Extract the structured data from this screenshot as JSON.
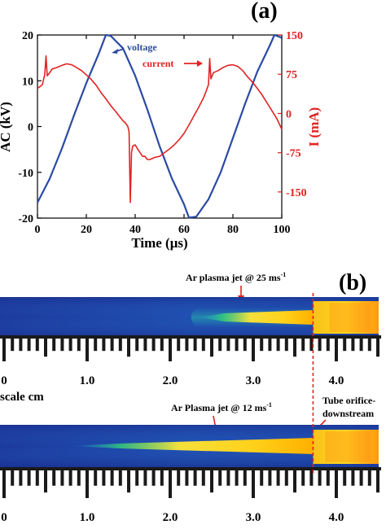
{
  "chart_data": [
    {
      "type": "line",
      "panel_label": "(a)",
      "xlabel": "Time (μs)",
      "ylabel": "AC (kV)",
      "y2label": "I (mA)",
      "xlim": [
        0,
        100
      ],
      "ylim": [
        -20,
        20
      ],
      "y2lim": [
        -200,
        150
      ],
      "xticks": [
        0,
        20,
        40,
        60,
        80,
        100
      ],
      "yticks": [
        -20,
        -10,
        0,
        10,
        20
      ],
      "y2ticks": [
        -150,
        -75,
        0,
        75,
        150
      ],
      "grid": false,
      "legend_placement": "top-right",
      "series": [
        {
          "name": "voltage",
          "axis": "left",
          "color": "#2b4aa3",
          "x": [
            0,
            5,
            10,
            15,
            20,
            25,
            28,
            30,
            35,
            40,
            45,
            50,
            55,
            60,
            62,
            65,
            70,
            75,
            80,
            85,
            90,
            95,
            97,
            100
          ],
          "y": [
            -16.6,
            -11.4,
            -4.8,
            2.5,
            9.5,
            15.8,
            20.0,
            19.8,
            17.1,
            11.1,
            3.7,
            -4.3,
            -11.3,
            -17.0,
            -19.9,
            -19.7,
            -15.9,
            -10.0,
            -2.5,
            5.0,
            12.0,
            17.6,
            20.0,
            19.4
          ]
        },
        {
          "name": "current",
          "axis": "right",
          "color": "#e32222",
          "x": [
            0,
            2,
            3,
            3.5,
            4,
            5,
            6,
            8,
            10,
            12,
            14,
            16,
            18,
            20,
            22,
            24,
            26,
            28,
            30,
            32,
            34,
            35,
            36,
            37,
            37.5,
            38,
            38.5,
            39,
            40,
            41,
            42,
            43,
            44,
            45,
            46,
            48,
            50,
            52,
            54,
            56,
            58,
            60,
            62,
            64,
            66,
            68,
            69,
            70,
            70.5,
            71,
            72,
            74,
            76,
            78,
            80,
            82,
            84,
            86,
            88,
            90,
            92,
            94,
            96,
            98,
            100
          ],
          "y": [
            48,
            55,
            75,
            110,
            72,
            78,
            85,
            88,
            92,
            95,
            93,
            88,
            82,
            74,
            65,
            54,
            40,
            28,
            15,
            4,
            -8,
            -14,
            -18,
            -25,
            -35,
            -170,
            -75,
            -62,
            -60,
            -68,
            -75,
            -82,
            -82,
            -88,
            -88,
            -84,
            -82,
            -75,
            -68,
            -60,
            -50,
            -38,
            -22,
            -5,
            12,
            30,
            42,
            55,
            105,
            66,
            78,
            82,
            88,
            92,
            93,
            90,
            82,
            70,
            60,
            48,
            35,
            20,
            5,
            -10,
            -30
          ]
        }
      ]
    },
    {
      "type": "image",
      "panel_label": "(b)",
      "ruler_labels": [
        "0",
        "1.0",
        "2.0",
        "3.0",
        "4.0"
      ],
      "scale_label": "scale cm",
      "jets": [
        {
          "annotation_text": "Ar plasma jet @ 25 ms",
          "superscript": "-1",
          "start_cm": 2.35
        },
        {
          "annotation_text": "Ar Plasma jet @ 12 ms",
          "superscript": "-1",
          "start_cm": 0.8
        }
      ],
      "tube_orifice_line1": "Tube orifice-",
      "tube_orifice_line2": "downstream",
      "orifice_cm": 3.72,
      "colors": {
        "background": "#1e3aa3",
        "line": "#e32222",
        "annotation": "#e32222"
      }
    }
  ]
}
